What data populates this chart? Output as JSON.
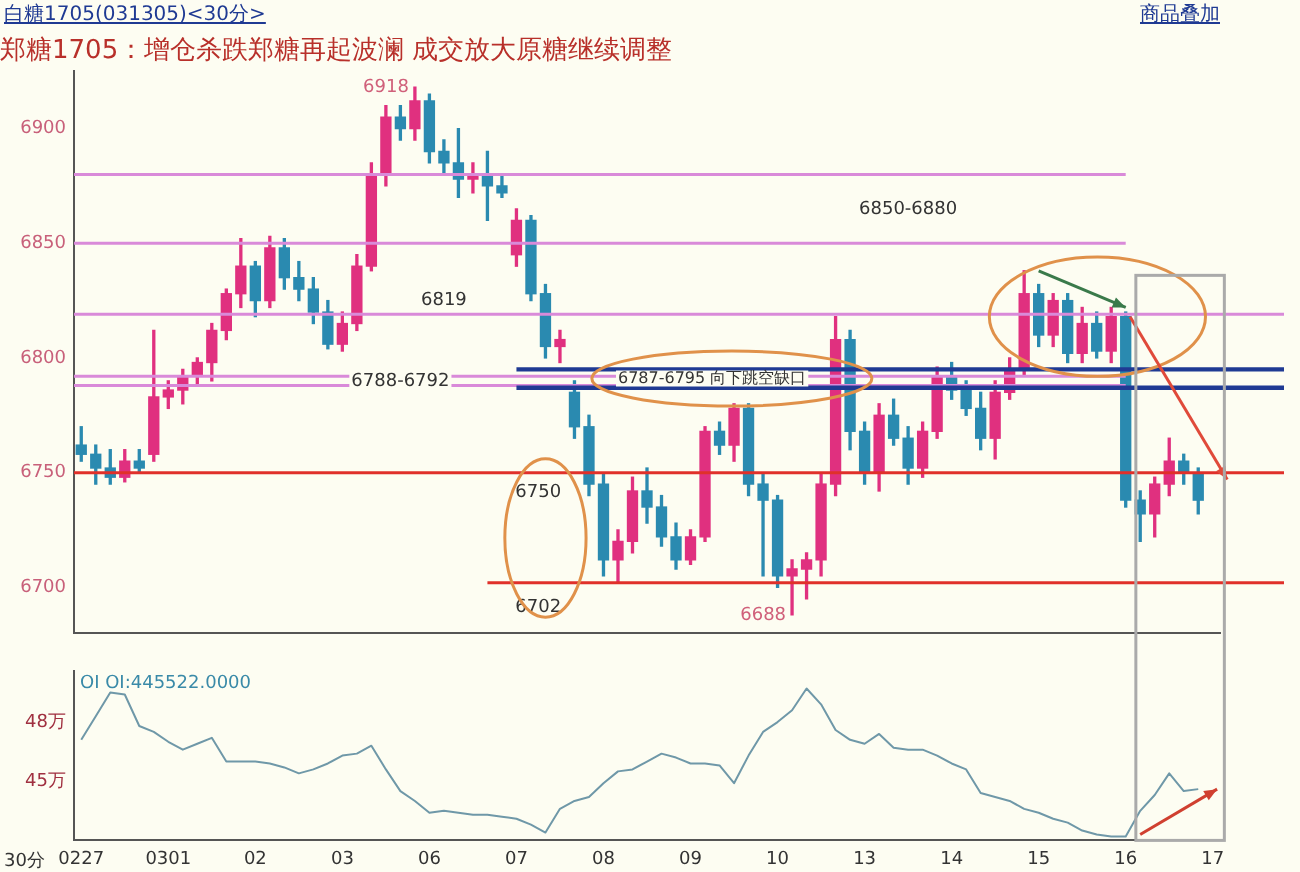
{
  "chart_data": [
    {
      "type": "candlestick",
      "title": "郑糖1705：增仓杀跌郑糖再起波澜 成交放大原糖继续调整",
      "categories": [
        "0227",
        null,
        null,
        null,
        null,
        null,
        "0301",
        null,
        null,
        null,
        null,
        null,
        "02",
        null,
        null,
        null,
        null,
        null,
        "03",
        null,
        null,
        null,
        null,
        null,
        "06",
        null,
        null,
        null,
        null,
        null,
        "07",
        null,
        null,
        null,
        null,
        null,
        "08",
        null,
        null,
        null,
        null,
        null,
        "09",
        null,
        null,
        null,
        null,
        null,
        "10",
        null,
        null,
        null,
        null,
        null,
        "13",
        null,
        null,
        null,
        null,
        null,
        "14",
        null,
        null,
        null,
        null,
        null,
        "15",
        null,
        null,
        null,
        null,
        null,
        "16",
        null,
        null,
        null,
        null,
        null,
        "17"
      ],
      "ohlc": [
        [
          6762,
          6770,
          6755,
          6758
        ],
        [
          6758,
          6762,
          6745,
          6752
        ],
        [
          6752,
          6760,
          6745,
          6748
        ],
        [
          6748,
          6760,
          6746,
          6755
        ],
        [
          6755,
          6760,
          6750,
          6752
        ],
        [
          6758,
          6812,
          6755,
          6783
        ],
        [
          6783,
          6790,
          6778,
          6786
        ],
        [
          6786,
          6795,
          6780,
          6792
        ],
        [
          6792,
          6800,
          6788,
          6798
        ],
        [
          6798,
          6815,
          6790,
          6812
        ],
        [
          6812,
          6830,
          6808,
          6828
        ],
        [
          6828,
          6852,
          6822,
          6840
        ],
        [
          6840,
          6842,
          6818,
          6825
        ],
        [
          6825,
          6853,
          6822,
          6848
        ],
        [
          6848,
          6852,
          6830,
          6835
        ],
        [
          6835,
          6842,
          6825,
          6830
        ],
        [
          6830,
          6835,
          6815,
          6820
        ],
        [
          6820,
          6825,
          6804,
          6806
        ],
        [
          6806,
          6820,
          6803,
          6815
        ],
        [
          6815,
          6845,
          6812,
          6840
        ],
        [
          6840,
          6885,
          6838,
          6880
        ],
        [
          6880,
          6910,
          6875,
          6905
        ],
        [
          6905,
          6910,
          6895,
          6900
        ],
        [
          6900,
          6918,
          6895,
          6912
        ],
        [
          6912,
          6915,
          6885,
          6890
        ],
        [
          6890,
          6895,
          6880,
          6885
        ],
        [
          6885,
          6900,
          6870,
          6878
        ],
        [
          6878,
          6885,
          6872,
          6880
        ],
        [
          6880,
          6890,
          6860,
          6875
        ],
        [
          6875,
          6880,
          6870,
          6872
        ],
        [
          6845,
          6865,
          6840,
          6860
        ],
        [
          6860,
          6862,
          6825,
          6828
        ],
        [
          6828,
          6832,
          6800,
          6805
        ],
        [
          6805,
          6812,
          6798,
          6808
        ],
        [
          6785,
          6790,
          6765,
          6770
        ],
        [
          6770,
          6775,
          6740,
          6745
        ],
        [
          6745,
          6750,
          6705,
          6712
        ],
        [
          6712,
          6725,
          6702,
          6720
        ],
        [
          6720,
          6748,
          6715,
          6742
        ],
        [
          6742,
          6752,
          6728,
          6735
        ],
        [
          6735,
          6740,
          6718,
          6722
        ],
        [
          6722,
          6728,
          6708,
          6712
        ],
        [
          6712,
          6725,
          6710,
          6722
        ],
        [
          6722,
          6770,
          6720,
          6768
        ],
        [
          6768,
          6772,
          6758,
          6762
        ],
        [
          6762,
          6780,
          6755,
          6778
        ],
        [
          6778,
          6780,
          6740,
          6745
        ],
        [
          6745,
          6750,
          6705,
          6738
        ],
        [
          6738,
          6740,
          6700,
          6705
        ],
        [
          6705,
          6712,
          6688,
          6708
        ],
        [
          6708,
          6715,
          6695,
          6712
        ],
        [
          6712,
          6750,
          6705,
          6745
        ],
        [
          6745,
          6818,
          6740,
          6808
        ],
        [
          6808,
          6812,
          6760,
          6768
        ],
        [
          6768,
          6772,
          6745,
          6750
        ],
        [
          6750,
          6780,
          6742,
          6775
        ],
        [
          6775,
          6782,
          6762,
          6765
        ],
        [
          6765,
          6770,
          6745,
          6752
        ],
        [
          6752,
          6772,
          6748,
          6768
        ],
        [
          6768,
          6796,
          6765,
          6792
        ],
        [
          6792,
          6798,
          6782,
          6786
        ],
        [
          6786,
          6790,
          6775,
          6778
        ],
        [
          6778,
          6785,
          6760,
          6765
        ],
        [
          6765,
          6790,
          6756,
          6785
        ],
        [
          6785,
          6800,
          6782,
          6795
        ],
        [
          6795,
          6838,
          6792,
          6828
        ],
        [
          6828,
          6832,
          6805,
          6810
        ],
        [
          6810,
          6828,
          6805,
          6825
        ],
        [
          6825,
          6828,
          6798,
          6802
        ],
        [
          6802,
          6822,
          6798,
          6815
        ],
        [
          6815,
          6820,
          6800,
          6803
        ],
        [
          6803,
          6822,
          6798,
          6818
        ],
        [
          6818,
          6820,
          6735,
          6738
        ],
        [
          6738,
          6742,
          6720,
          6732
        ],
        [
          6732,
          6748,
          6722,
          6745
        ],
        [
          6745,
          6765,
          6740,
          6755
        ],
        [
          6755,
          6758,
          6745,
          6750
        ],
        [
          6750,
          6752,
          6732,
          6738
        ],
        null
      ],
      "colors": [
        "#2a8ab0",
        "#2a8ab0",
        "#2a8ab0",
        "#e0307f",
        "#2a8ab0",
        "#e0307f",
        "#e0307f",
        "#e0307f",
        "#e0307f",
        "#e0307f",
        "#e0307f",
        "#e0307f",
        "#2a8ab0",
        "#e0307f",
        "#2a8ab0",
        "#2a8ab0",
        "#2a8ab0",
        "#2a8ab0",
        "#e0307f",
        "#e0307f",
        "#e0307f",
        "#e0307f",
        "#2a8ab0",
        "#e0307f",
        "#2a8ab0",
        "#2a8ab0",
        "#2a8ab0",
        "#e0307f",
        "#2a8ab0",
        "#2a8ab0",
        "#e0307f",
        "#2a8ab0",
        "#2a8ab0",
        "#e0307f",
        "#2a8ab0",
        "#2a8ab0",
        "#2a8ab0",
        "#e0307f",
        "#e0307f",
        "#2a8ab0",
        "#2a8ab0",
        "#2a8ab0",
        "#e0307f",
        "#e0307f",
        "#2a8ab0",
        "#e0307f",
        "#2a8ab0",
        "#2a8ab0",
        "#2a8ab0",
        "#e0307f",
        "#e0307f",
        "#e0307f",
        "#e0307f",
        "#2a8ab0",
        "#2a8ab0",
        "#e0307f",
        "#2a8ab0",
        "#2a8ab0",
        "#e0307f",
        "#e0307f",
        "#2a8ab0",
        "#2a8ab0",
        "#2a8ab0",
        "#e0307f",
        "#e0307f",
        "#e0307f",
        "#2a8ab0",
        "#e0307f",
        "#2a8ab0",
        "#e0307f",
        "#2a8ab0",
        "#e0307f",
        "#2a8ab0",
        "#2a8ab0",
        "#e0307f",
        "#e0307f",
        "#2a8ab0",
        "#2a8ab0",
        null
      ],
      "ylim": [
        6680,
        6925
      ],
      "yticks": [
        6700,
        6750,
        6800,
        6850,
        6900
      ],
      "tick_labels": "y",
      "grid": false,
      "legend": false,
      "ref_lines": [
        {
          "axis": "y",
          "value": 6819,
          "label": "6819",
          "color": "#d98ad9"
        },
        {
          "axis": "y",
          "value": 6750,
          "label": "6750",
          "color": "#e0302a"
        },
        {
          "axis": "y",
          "value": 6702,
          "label": "6702",
          "color": "#e0302a"
        },
        {
          "axis": "y",
          "value": 6880,
          "color": "#d98ad9"
        },
        {
          "axis": "y",
          "value": 6850,
          "color": "#d98ad9"
        },
        {
          "axis": "y",
          "value": 6792,
          "color": "#d98ad9"
        },
        {
          "axis": "y",
          "value": 6788,
          "color": "#d98ad9"
        },
        {
          "axis": "y",
          "value": 6795,
          "color": "#1f3a93"
        },
        {
          "axis": "y",
          "value": 6787,
          "color": "#1f3a93"
        }
      ],
      "annotations": [
        "白糖1705(031305)<30分>",
        "商品叠加",
        "6918",
        "6688",
        "6850-6880",
        "6788-6792",
        "6787-6795 向下跳空缺口"
      ]
    },
    {
      "type": "line",
      "categories": [
        "0227",
        null,
        null,
        null,
        null,
        null,
        "0301",
        null,
        null,
        null,
        null,
        null,
        "02",
        null,
        null,
        null,
        null,
        null,
        "03",
        null,
        null,
        null,
        null,
        null,
        "06",
        null,
        null,
        null,
        null,
        null,
        "07",
        null,
        null,
        null,
        null,
        null,
        "08",
        null,
        null,
        null,
        null,
        null,
        "09",
        null,
        null,
        null,
        null,
        null,
        "10",
        null,
        null,
        null,
        null,
        null,
        "13",
        null,
        null,
        null,
        null,
        null,
        "14",
        null,
        null,
        null,
        null,
        null,
        "15",
        null,
        null,
        null,
        null,
        null,
        "16",
        null,
        null,
        null,
        null,
        null,
        "17"
      ],
      "series": [
        {
          "color": "#6f98a8",
          "values": [
            47.1,
            48.3,
            49.5,
            49.4,
            47.8,
            47.5,
            47.0,
            46.6,
            46.9,
            47.2,
            46.0,
            46.0,
            46.0,
            45.9,
            45.7,
            45.4,
            45.6,
            45.9,
            46.3,
            46.4,
            46.8,
            45.6,
            44.5,
            44.0,
            43.4,
            43.5,
            43.4,
            43.3,
            43.3,
            43.2,
            43.1,
            42.8,
            42.4,
            43.6,
            44.0,
            44.2,
            44.9,
            45.5,
            45.6,
            46.0,
            46.4,
            46.2,
            45.9,
            45.9,
            45.8,
            44.9,
            46.3,
            47.5,
            48.0,
            48.6,
            49.7,
            48.9,
            47.6,
            47.1,
            46.9,
            47.4,
            46.7,
            46.6,
            46.6,
            46.3,
            45.9,
            45.6,
            44.4,
            44.2,
            44.0,
            43.6,
            43.4,
            43.1,
            42.9,
            42.5,
            42.3,
            42.2,
            42.2,
            43.5,
            44.3,
            45.4,
            44.5,
            44.6,
            null
          ]
        }
      ],
      "ylim": [
        42,
        50.6
      ],
      "yticks": [
        {
          "value": 48,
          "label": "48万"
        },
        {
          "value": 45,
          "label": "45万"
        }
      ],
      "grid": false,
      "legend": false,
      "marker": "none",
      "line_style": "solid",
      "annotations": [
        "OI OI:445522.0000",
        "30分"
      ]
    }
  ]
}
